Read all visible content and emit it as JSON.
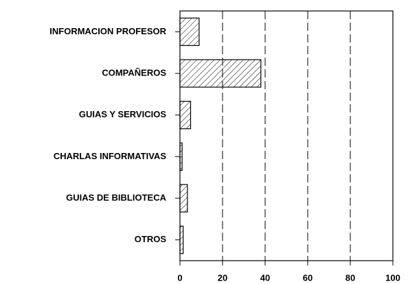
{
  "chart_data": {
    "type": "barh",
    "categories": [
      "INFORMACION PROFESOR",
      "COMPAÑEROS",
      "GUIAS Y SERVICIOS",
      "CHARLAS INFORMATIVAS",
      "GUIAS DE BIBLIOTECA",
      "OTROS"
    ],
    "values": [
      9,
      38,
      5,
      1,
      3.5,
      1.5
    ],
    "color": "#000000",
    "xlim": [
      0,
      100
    ],
    "xticks": [
      0,
      20,
      40,
      60,
      80,
      100
    ],
    "grid": true
  }
}
